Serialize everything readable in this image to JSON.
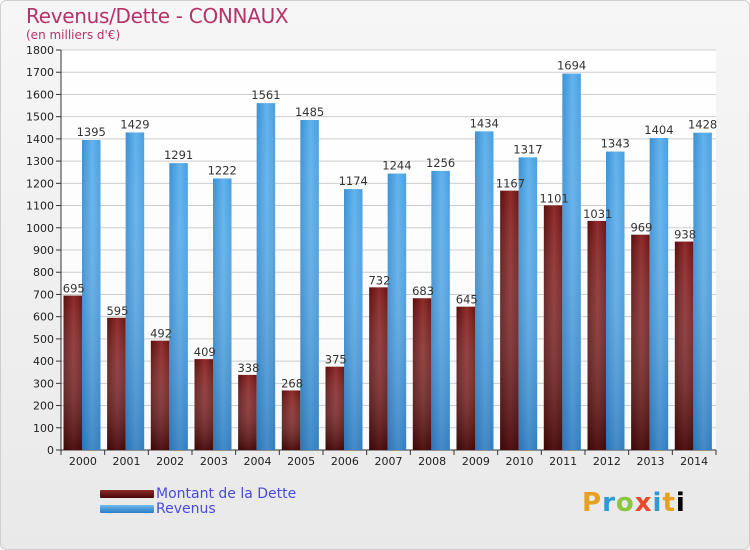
{
  "header": {
    "title": "Revenus/Dette - CONNAUX",
    "subtitle": "(en milliers d'€)"
  },
  "legend": {
    "debt_label": "Montant de la Dette",
    "revenue_label": "Revenus"
  },
  "logo": {
    "text": "Proxiti"
  },
  "colors": {
    "debt": "#7a1c1c",
    "revenue": "#4aa3e3",
    "title": "#b5326a",
    "legend_text": "#4a4ad8"
  },
  "chart_data": {
    "type": "bar",
    "title": "Revenus/Dette - CONNAUX",
    "subtitle": "(en milliers d'€)",
    "categories": [
      "2000",
      "2001",
      "2002",
      "2003",
      "2004",
      "2005",
      "2006",
      "2007",
      "2008",
      "2009",
      "2010",
      "2011",
      "2012",
      "2013",
      "2014"
    ],
    "series": [
      {
        "name": "Montant de la Dette",
        "values": [
          695,
          595,
          492,
          409,
          338,
          268,
          375,
          732,
          683,
          645,
          1167,
          1101,
          1031,
          969,
          938
        ]
      },
      {
        "name": "Revenus",
        "values": [
          1395,
          1429,
          1291,
          1222,
          1561,
          1485,
          1174,
          1244,
          1256,
          1434,
          1317,
          1694,
          1343,
          1404,
          1428
        ]
      }
    ],
    "value_labels": {
      "Montant de la Dette": [
        "695",
        "595",
        "492",
        "409",
        "338",
        "268",
        "375",
        "732",
        "683",
        "645",
        "1167",
        "1101",
        "1031",
        "969",
        "938"
      ],
      "Revenus": [
        "1395",
        "1429",
        "1291",
        "1222",
        "1561",
        "1485",
        "1174",
        "1244",
        "1256",
        "1434",
        "1317",
        "1694",
        "1343",
        "1404",
        "1428"
      ]
    },
    "ylim": [
      0,
      1800
    ],
    "yticks": [
      0,
      100,
      200,
      300,
      400,
      500,
      600,
      700,
      800,
      900,
      1000,
      1100,
      1200,
      1300,
      1400,
      1500,
      1600,
      1700,
      1800
    ],
    "grid": true,
    "legend_position": "bottom-left"
  }
}
